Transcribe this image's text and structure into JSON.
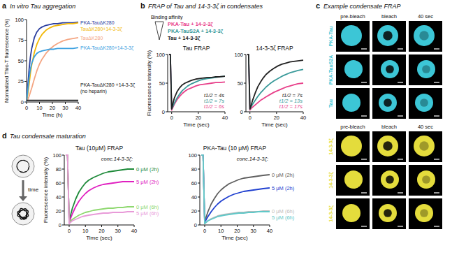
{
  "chart_data": [
    {
      "type": "line",
      "panel_label": "a",
      "title": "In vitro Tau aggregation",
      "x_label": "Time (h)",
      "y_label": "Normalized Thio-T fluorescence (%)",
      "x": [
        0,
        1,
        2,
        3,
        4,
        6,
        8,
        10,
        12,
        15,
        18,
        21,
        24,
        28,
        32,
        36,
        40
      ],
      "xlim": [
        0,
        40
      ],
      "xticks": [
        0,
        10,
        20,
        30,
        40
      ],
      "ylim": [
        0,
        100
      ],
      "yticks": [
        0,
        25,
        50,
        75,
        100
      ],
      "series": [
        {
          "name": "PKA-TauΔK280",
          "color": "#2a3d9e",
          "values": [
            0,
            20,
            40,
            55,
            65,
            78,
            85,
            89,
            91,
            93,
            94,
            95,
            95,
            96,
            96,
            96,
            97
          ]
        },
        {
          "name": "TauΔK280+14-3-3ζ",
          "color": "#f2b705",
          "values": [
            0,
            10,
            22,
            35,
            45,
            60,
            70,
            77,
            82,
            87,
            90,
            92,
            93,
            94,
            95,
            95,
            96
          ]
        },
        {
          "name": "TauΔK280",
          "color": "#f4a582",
          "values": [
            0,
            3,
            7,
            12,
            17,
            28,
            38,
            46,
            52,
            59,
            64,
            68,
            71,
            74,
            76,
            77,
            78
          ]
        },
        {
          "name": "PKA-TauΔK280+14-3-3ζ",
          "color": "#3aa0e0",
          "values": [
            0,
            15,
            30,
            40,
            47,
            55,
            59,
            61,
            62,
            63,
            64,
            64,
            65,
            65,
            65,
            65,
            66
          ]
        },
        {
          "name": "PKA-TauΔK280 +14-3-3ζ",
          "color": "#1a1a1a",
          "values": [
            2,
            2,
            2,
            2,
            2,
            2,
            2,
            2,
            2,
            2,
            2,
            2,
            2,
            2,
            2,
            2,
            2
          ]
        }
      ],
      "annotations": [
        "(no heparin)"
      ]
    },
    {
      "type": "line",
      "panel_label": "b",
      "panel_title": "FRAP of Tau and 14-3-3ζ in condensates",
      "legend_title": "Binding affinity",
      "title": "Tau FRAP",
      "x_label": "Time (sec)",
      "y_label": "Fluorescence intensity (%)",
      "x": [
        -2,
        -1,
        0,
        1,
        2,
        4,
        6,
        8,
        10,
        12,
        15,
        18,
        21,
        24,
        27,
        30,
        33,
        36,
        40
      ],
      "xlim": [
        -3,
        40
      ],
      "xticks": [
        0,
        20,
        40
      ],
      "ylim": [
        0,
        100
      ],
      "yticks": [
        0,
        50,
        100
      ],
      "series": [
        {
          "name": "PKA-Tau + 14-3-3ζ",
          "color": "#e8408a",
          "values": [
            100,
            100,
            3,
            8,
            13,
            21,
            27,
            32,
            36,
            39,
            42,
            45,
            47,
            48,
            49,
            50,
            51,
            51,
            52
          ]
        },
        {
          "name": "PKA-TauS2A + 14-3-3ζ",
          "color": "#3a9a9a",
          "values": [
            100,
            100,
            5,
            10,
            15,
            24,
            31,
            37,
            41,
            45,
            49,
            52,
            55,
            57,
            58,
            59,
            60,
            61,
            62
          ]
        },
        {
          "name": "Tau + 14-3-3ζ",
          "color": "#222222",
          "values": [
            100,
            100,
            5,
            15,
            24,
            35,
            42,
            47,
            50,
            52,
            55,
            57,
            58,
            59,
            60,
            60,
            61,
            61,
            62
          ]
        }
      ],
      "annotations": [
        {
          "text": "t1/2 = 4s",
          "color": "#222222"
        },
        {
          "text": "t1/2 = 7s",
          "color": "#3a9a9a"
        },
        {
          "text": "t1/2 = 6s",
          "color": "#e8408a"
        }
      ]
    },
    {
      "type": "line",
      "title": "14-3-3ζ FRAP",
      "x_label": "Time (sec)",
      "x": [
        -2,
        -1,
        0,
        1,
        2,
        4,
        6,
        8,
        10,
        12,
        15,
        18,
        21,
        24,
        27,
        30,
        33,
        36,
        40
      ],
      "xlim": [
        -3,
        40
      ],
      "xticks": [
        0,
        20,
        40
      ],
      "ylim": [
        0,
        100
      ],
      "yticks": [
        0,
        50,
        100
      ],
      "series": [
        {
          "color": "#e8408a",
          "values": [
            100,
            100,
            3,
            6,
            8,
            12,
            16,
            20,
            23,
            26,
            30,
            34,
            37,
            40,
            43,
            45,
            47,
            49,
            50
          ]
        },
        {
          "color": "#3a9a9a",
          "values": [
            100,
            100,
            5,
            9,
            13,
            20,
            27,
            33,
            38,
            43,
            49,
            54,
            58,
            62,
            65,
            68,
            70,
            72,
            74
          ]
        },
        {
          "color": "#222222",
          "values": [
            100,
            100,
            5,
            12,
            20,
            33,
            44,
            52,
            59,
            65,
            71,
            76,
            80,
            83,
            85,
            87,
            88,
            89,
            90
          ]
        }
      ],
      "annotations": [
        {
          "text": "t1/2 = 7s",
          "color": "#222222"
        },
        {
          "text": "t1/2 = 13s",
          "color": "#3a9a9a"
        },
        {
          "text": "t1/2 = 17s",
          "color": "#e8408a"
        }
      ]
    },
    {
      "type": "line",
      "panel_label": "d",
      "panel_title": "Tau condensate maturation",
      "schematic_label": "time",
      "title": "Tau (10μM) FRAP",
      "x_label": "Time (sec)",
      "y_label": "Fluorescence intensity (%)",
      "x": [
        -2,
        -1,
        0,
        1,
        2,
        4,
        6,
        8,
        10,
        12,
        15,
        18,
        21,
        24,
        27,
        30,
        33,
        36,
        40
      ],
      "xlim": [
        -3,
        40
      ],
      "xticks": [
        0,
        10,
        20,
        30,
        40
      ],
      "ylim": [
        0,
        100
      ],
      "yticks": [
        0,
        20,
        40,
        60,
        80,
        100
      ],
      "series": [
        {
          "name": "0 μM (2h)",
          "color": "#1e8a3a",
          "values": [
            100,
            100,
            5,
            15,
            24,
            37,
            47,
            54,
            60,
            64,
            68,
            71,
            74,
            76,
            77,
            78,
            79,
            80,
            80
          ]
        },
        {
          "name": "5 μM (2h)",
          "color": "#e020c0",
          "values": [
            100,
            100,
            4,
            10,
            16,
            26,
            34,
            40,
            45,
            49,
            53,
            56,
            58,
            59,
            60,
            61,
            62,
            62,
            62
          ]
        },
        {
          "name": "0 μM (6h)",
          "color": "#8fd870",
          "values": [
            100,
            100,
            3,
            6,
            8,
            11,
            14,
            16,
            18,
            19,
            21,
            22,
            23,
            24,
            24,
            25,
            25,
            26,
            26
          ]
        },
        {
          "name": "5 μM (6h)",
          "color": "#e89ad8",
          "values": [
            100,
            100,
            2,
            4,
            6,
            8,
            10,
            12,
            13,
            14,
            15,
            16,
            17,
            17,
            18,
            18,
            18,
            19,
            19
          ]
        }
      ],
      "annotations": [
        "conc.14-3-3ζ:"
      ]
    },
    {
      "type": "line",
      "title": "PKA-Tau (10 μM) FRAP",
      "x_label": "Time (sec)",
      "x": [
        -2,
        -1,
        0,
        1,
        2,
        4,
        6,
        8,
        10,
        12,
        15,
        18,
        21,
        24,
        27,
        30,
        33,
        36,
        40
      ],
      "xlim": [
        -3,
        40
      ],
      "xticks": [
        0,
        10,
        20,
        30,
        40
      ],
      "ylim": [
        0,
        100
      ],
      "yticks": [
        0,
        20,
        40,
        60,
        80,
        100
      ],
      "series": [
        {
          "name": "0 μM (2h)",
          "color": "#606060",
          "values": [
            100,
            100,
            5,
            12,
            19,
            30,
            38,
            45,
            50,
            54,
            59,
            62,
            65,
            67,
            68,
            69,
            70,
            71,
            72
          ]
        },
        {
          "name": "5 μM (2h)",
          "color": "#2040d0",
          "values": [
            100,
            100,
            4,
            8,
            12,
            19,
            25,
            30,
            34,
            37,
            41,
            44,
            46,
            48,
            49,
            50,
            51,
            52,
            53
          ]
        },
        {
          "name": "0 μM (6h)",
          "color": "#bdbdbd",
          "values": [
            100,
            100,
            2,
            4,
            6,
            9,
            11,
            13,
            14,
            15,
            16,
            17,
            18,
            18,
            19,
            19,
            19,
            20,
            20
          ]
        },
        {
          "name": "5 μM (6h)",
          "color": "#60c8c8",
          "values": [
            100,
            100,
            2,
            4,
            6,
            8,
            10,
            12,
            13,
            14,
            15,
            16,
            17,
            17,
            18,
            18,
            19,
            19,
            19
          ]
        }
      ],
      "annotations": [
        "conc.14-3-3ζ:"
      ]
    }
  ],
  "panel_c": {
    "panel_label": "c",
    "title": "Example condensate FRAP",
    "groups": [
      {
        "columns": [
          "pre-bleach",
          "bleach",
          "40 sec"
        ],
        "rows": [
          "PKA-Tau",
          "PKA-TauS2A",
          "Tau"
        ],
        "color": "#3cc6d6"
      },
      {
        "columns": [
          "pre-bleach",
          "bleach",
          "40 sec"
        ],
        "rows": [
          "14-3-3ζ",
          "14-3-3ζ",
          "14-3-3ζ"
        ],
        "color": "#e4dc3c"
      }
    ]
  }
}
